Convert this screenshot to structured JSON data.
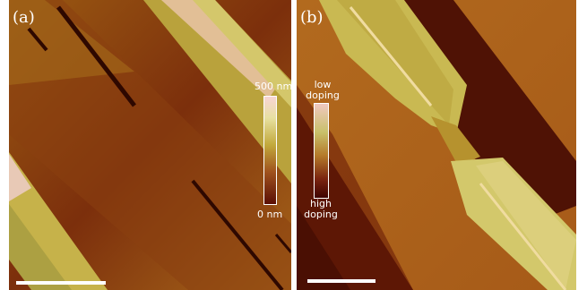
{
  "figure": {
    "panel_a": {
      "label": "(a)",
      "colorbar": {
        "top_label": "500 nm",
        "bottom_label": "0 nm"
      }
    },
    "panel_b": {
      "label": "(b)",
      "colorbar": {
        "top_label": "low\ndoping",
        "bottom_label": "high\ndoping"
      }
    }
  }
}
